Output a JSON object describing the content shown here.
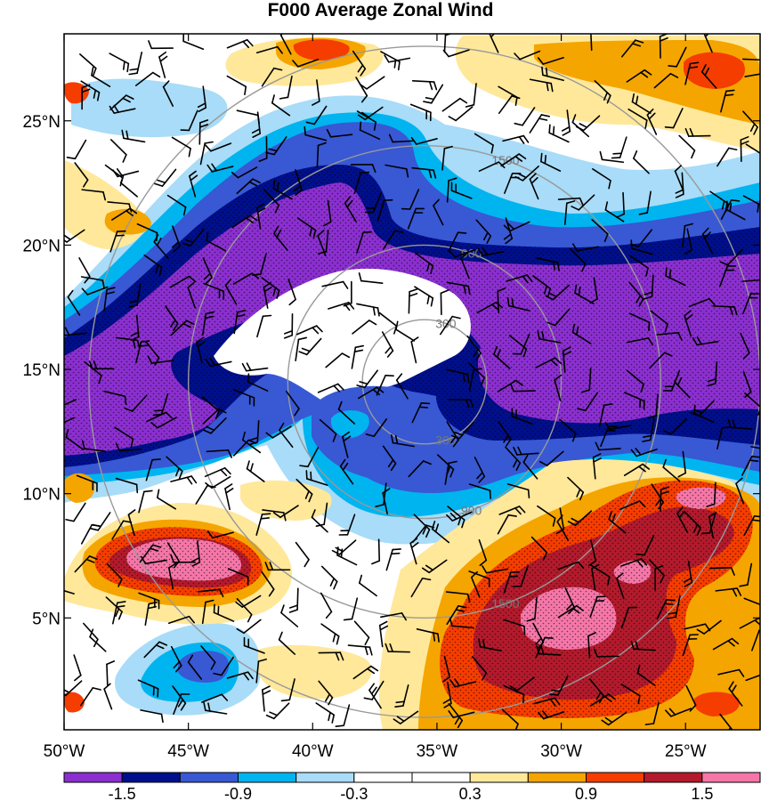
{
  "title": "F000 Average Zonal Wind",
  "map": {
    "lon_range": [
      -50,
      -22
    ],
    "lat_range": [
      0.5,
      28.5
    ],
    "lat_ticks": [
      {
        "value": 25,
        "label": "25°N"
      },
      {
        "value": 20,
        "label": "20°N"
      },
      {
        "value": 15,
        "label": "15°N"
      },
      {
        "value": 10,
        "label": "10°N"
      },
      {
        "value": 5,
        "label": "5°N"
      }
    ],
    "lon_ticks": [
      {
        "value": -50,
        "label": "50°W"
      },
      {
        "value": -45,
        "label": "45°W"
      },
      {
        "value": -40,
        "label": "40°W"
      },
      {
        "value": -35,
        "label": "35°W"
      },
      {
        "value": -30,
        "label": "30°W"
      },
      {
        "value": -25,
        "label": "25°W"
      }
    ],
    "range_rings": {
      "center": [
        -35.5,
        14.5
      ],
      "color": "#999999",
      "rings": [
        {
          "radius_deg": 2.5,
          "label": "300"
        },
        {
          "radius_deg": 5.5,
          "label": "900"
        },
        {
          "radius_deg": 9.5,
          "label": "1500"
        },
        {
          "radius_deg": 13.5,
          "label": ""
        }
      ]
    },
    "legend": {
      "colors": [
        "#8b2fd0",
        "#000f8c",
        "#3858d4",
        "#00b4f0",
        "#a8dcf8",
        "#ffffff",
        "#ffffff",
        "#ffe89a",
        "#f5a500",
        "#f53d00",
        "#b31a2c",
        "#f576a8"
      ],
      "tick_labels": [
        "-1.5",
        "-0.9",
        "-0.3",
        "0.3",
        "0.9",
        "1.5"
      ]
    }
  }
}
